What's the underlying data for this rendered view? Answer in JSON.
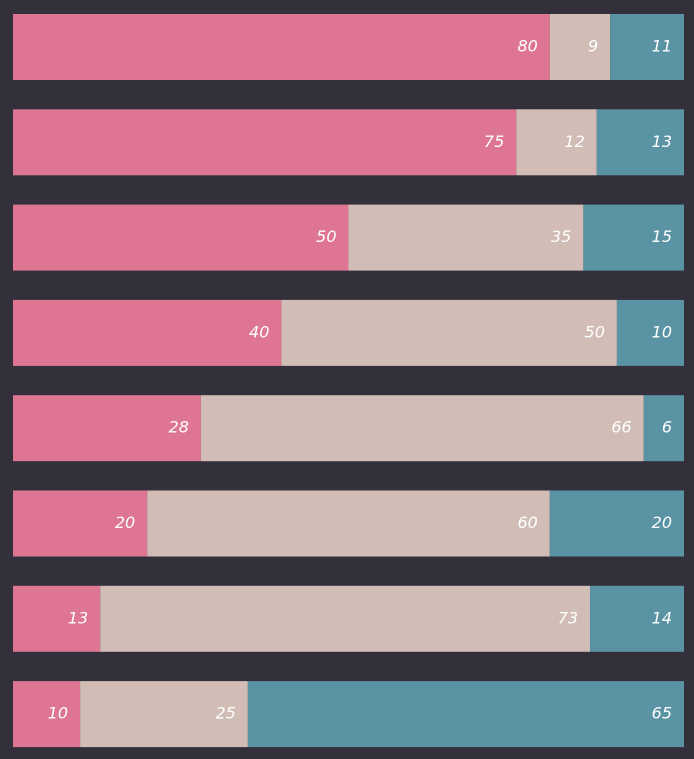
{
  "chart_data": {
    "type": "bar",
    "orientation": "horizontal",
    "stacked": true,
    "xlim": [
      0,
      100
    ],
    "series": [
      {
        "color": "#de7693",
        "values": [
          80,
          75,
          50,
          40,
          28,
          20,
          13,
          10
        ]
      },
      {
        "color": "#d1bdb5",
        "values": [
          9,
          12,
          35,
          50,
          66,
          60,
          73,
          25
        ]
      },
      {
        "color": "#5a93a3",
        "values": [
          11,
          13,
          15,
          10,
          6,
          20,
          14,
          65
        ]
      }
    ]
  }
}
